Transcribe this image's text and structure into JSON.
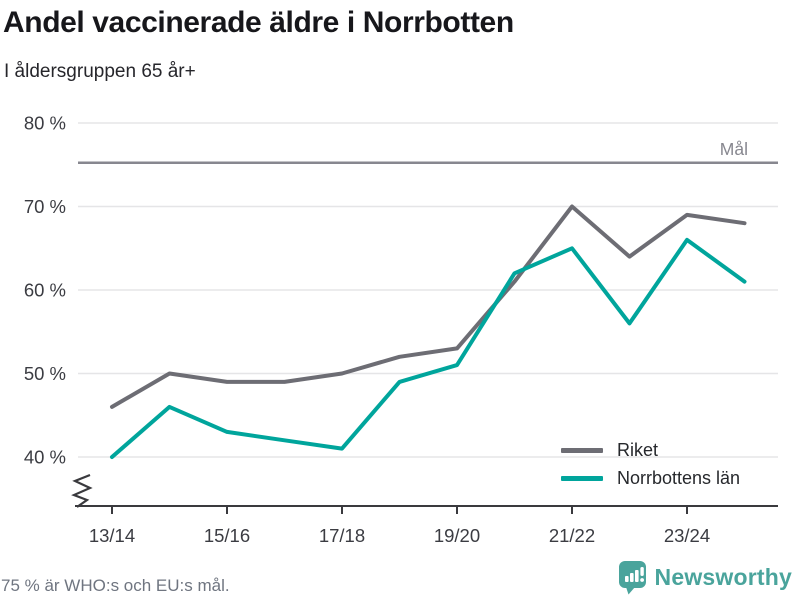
{
  "header": {
    "title": "Andel vaccinerade äldre i Norrbotten",
    "subtitle": "I åldersgruppen 65 år+"
  },
  "chart_data": {
    "type": "line",
    "title": "Andel vaccinerade äldre i Norrbotten",
    "subtitle": "I åldersgruppen 65 år+",
    "x": [
      "13/14",
      "14/15",
      "15/16",
      "16/17",
      "17/18",
      "18/19",
      "19/20",
      "20/21",
      "21/22",
      "22/23",
      "23/24",
      "24/25"
    ],
    "x_tick_labels": [
      "13/14",
      "15/16",
      "17/18",
      "19/20",
      "21/22",
      "23/24"
    ],
    "series": [
      {
        "name": "Riket",
        "color": "#6d6d74",
        "values": [
          46,
          50,
          49,
          49,
          50,
          52,
          53,
          61,
          70,
          64,
          69,
          68
        ]
      },
      {
        "name": "Norrbottens län",
        "color": "#00a59c",
        "values": [
          40,
          46,
          43,
          42,
          41,
          49,
          51,
          62,
          65,
          56,
          66,
          61
        ]
      }
    ],
    "goal_line": {
      "label": "Mål",
      "value": 75,
      "color": "#87878f"
    },
    "y_ticks": [
      40,
      50,
      60,
      70,
      80
    ],
    "y_tick_suffix": " %",
    "ylim": [
      40,
      80
    ],
    "axis_break": true,
    "grid": "horizontal",
    "legend_position": "inside-bottom-right",
    "unit": "%"
  },
  "footer": {
    "note": "75 % är WHO:s och EU:s mål.",
    "brand": "Newsworthy"
  },
  "colors": {
    "grid": "#e5e5e7",
    "axis": "#3a3a3e",
    "tick_text": "#3b3c42",
    "goal": "#87878f",
    "brand_teal": "#4aa49c"
  }
}
